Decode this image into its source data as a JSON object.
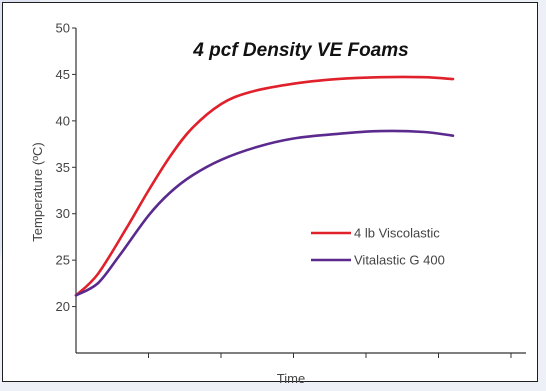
{
  "chart_data": {
    "type": "line",
    "title": "4 pcf Density VE Foams",
    "xlabel": "Time",
    "ylabel": "Temperature (ºC)",
    "ylim": [
      15,
      50
    ],
    "yticks": [
      20,
      25,
      30,
      35,
      40,
      45,
      50
    ],
    "xlim": [
      0,
      6
    ],
    "xticks": [
      1,
      2,
      3,
      4,
      5,
      6
    ],
    "legend_position": "center-right",
    "grid": false,
    "series": [
      {
        "name": "4  lb Viscolastic",
        "color": "#e0202a",
        "x": [
          0,
          0.3,
          0.7,
          1.0,
          1.3,
          1.6,
          2.0,
          2.4,
          3.0,
          3.6,
          4.2,
          4.8,
          5.2
        ],
        "y": [
          21.2,
          23.5,
          28.5,
          32.5,
          36.2,
          39.2,
          41.8,
          43.1,
          44.0,
          44.5,
          44.7,
          44.7,
          44.5
        ]
      },
      {
        "name": "Vitalastic G 400",
        "color": "#5b2a8e",
        "x": [
          0,
          0.3,
          0.6,
          1.0,
          1.3,
          1.6,
          2.0,
          2.5,
          3.0,
          3.6,
          4.2,
          4.8,
          5.2
        ],
        "y": [
          21.2,
          22.5,
          25.5,
          29.8,
          32.3,
          34.1,
          35.8,
          37.2,
          38.1,
          38.6,
          38.9,
          38.8,
          38.4
        ]
      }
    ]
  }
}
